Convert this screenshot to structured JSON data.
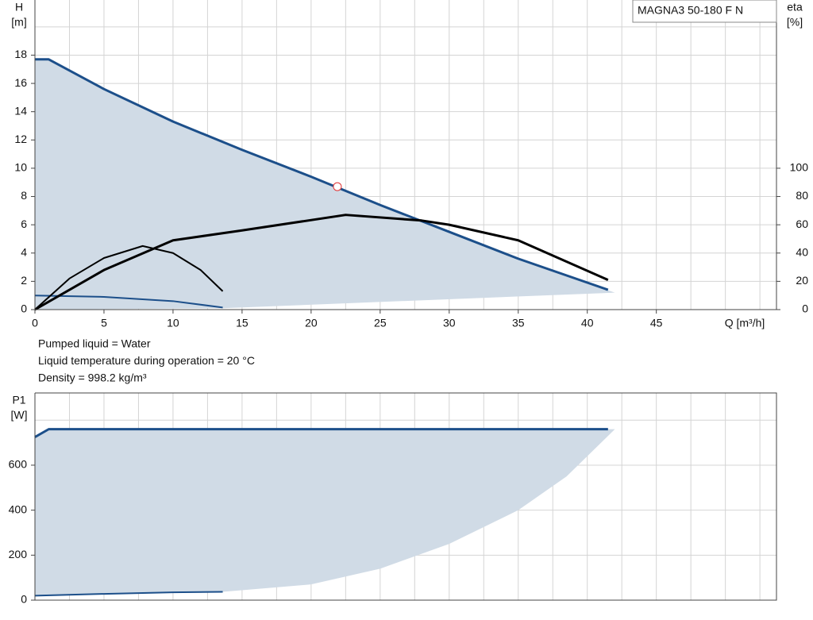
{
  "chart_data": [
    {
      "type": "line",
      "ylabel": [
        "H",
        "[m]"
      ],
      "y2label": [
        "eta",
        "[%]"
      ],
      "xlabel": "Q [m³/h]",
      "title": "MAGNA3 50-180 F N",
      "annotations": [
        "Pumped liquid = Water",
        "Liquid temperature during operation = 20 °C",
        "Density = 998.2 kg/m³"
      ],
      "xlim": [
        0,
        53.7
      ],
      "xticks": [
        0,
        5,
        10,
        15,
        20,
        25,
        30,
        35,
        40,
        45
      ],
      "xgrid": [
        0,
        2.5,
        5,
        7.5,
        10,
        12.5,
        15,
        17.5,
        20,
        22.5,
        25,
        27.5,
        30,
        32.5,
        35,
        37.5,
        40,
        42.5,
        45,
        47.5,
        50,
        52.5
      ],
      "ylim": [
        0,
        21.9
      ],
      "yticks": [
        0,
        2,
        4,
        6,
        8,
        10,
        12,
        14,
        16,
        18
      ],
      "ygrid": [
        0,
        2,
        4,
        6,
        8,
        10,
        12,
        14,
        16,
        18,
        20
      ],
      "y2lim": [
        0,
        219
      ],
      "y2ticks": [
        0,
        20,
        40,
        60,
        80,
        100
      ],
      "series": [
        {
          "kind": "area",
          "color": "#d0dbe6",
          "x": [
            0,
            1,
            5,
            10,
            15,
            20,
            25,
            30,
            35,
            42,
            42,
            13.6,
            0
          ],
          "values": [
            17.7,
            17.7,
            15.6,
            13.3,
            11.3,
            9.4,
            7.4,
            5.5,
            3.6,
            1.2,
            1.2,
            0.1,
            0
          ]
        },
        {
          "kind": "line",
          "color": "#1c4f8a",
          "width": 3,
          "x": [
            0,
            1,
            5,
            10,
            15,
            20,
            22,
            25,
            30,
            35,
            41.5
          ],
          "values": [
            17.7,
            17.7,
            15.6,
            13.3,
            11.3,
            9.4,
            8.6,
            7.4,
            5.5,
            3.6,
            1.4
          ]
        },
        {
          "kind": "line",
          "color": "#1c4f8a",
          "width": 2,
          "x": [
            0,
            5,
            10,
            13.6
          ],
          "values": [
            1.0,
            0.9,
            0.6,
            0.15
          ]
        },
        {
          "kind": "line",
          "color": "#000000",
          "width": 3,
          "axis": "y2",
          "x": [
            0,
            5,
            10,
            15,
            22.5,
            28,
            30,
            35,
            41.5
          ],
          "values": [
            0,
            28,
            49,
            56,
            67,
            63,
            60,
            49,
            21
          ]
        },
        {
          "kind": "line",
          "color": "#000000",
          "width": 2,
          "axis": "y2",
          "x": [
            0,
            2.5,
            5,
            7.8,
            10,
            12,
            13.6
          ],
          "values": [
            0,
            22,
            36.5,
            45,
            40,
            28,
            13
          ]
        },
        {
          "kind": "point",
          "color": "#e03030",
          "x": [
            21.9
          ],
          "values": [
            8.7
          ]
        }
      ]
    },
    {
      "type": "line",
      "ylabel": [
        "P1",
        "[W]"
      ],
      "xlim": [
        0,
        53.7
      ],
      "xgrid": [
        0,
        2.5,
        5,
        7.5,
        10,
        12.5,
        15,
        17.5,
        20,
        22.5,
        25,
        27.5,
        30,
        32.5,
        35,
        37.5,
        40,
        42.5,
        45,
        47.5,
        50,
        52.5
      ],
      "ylim": [
        0,
        921
      ],
      "yticks": [
        0,
        200,
        400,
        600
      ],
      "ygrid": [
        0,
        200,
        400,
        600,
        800
      ],
      "series": [
        {
          "kind": "area",
          "color": "#d0dbe6",
          "x": [
            0,
            1,
            42,
            38.5,
            35,
            30,
            25,
            20,
            13.6,
            0
          ],
          "values": [
            725,
            760,
            760,
            550,
            400,
            250,
            140,
            70,
            37,
            20
          ]
        },
        {
          "kind": "line",
          "color": "#1c4f8a",
          "width": 3,
          "x": [
            0,
            1,
            41.5
          ],
          "values": [
            725,
            760,
            760
          ]
        },
        {
          "kind": "line",
          "color": "#1c4f8a",
          "width": 2,
          "x": [
            0,
            5,
            10,
            13.6
          ],
          "values": [
            20,
            28,
            35,
            37
          ]
        }
      ]
    }
  ]
}
